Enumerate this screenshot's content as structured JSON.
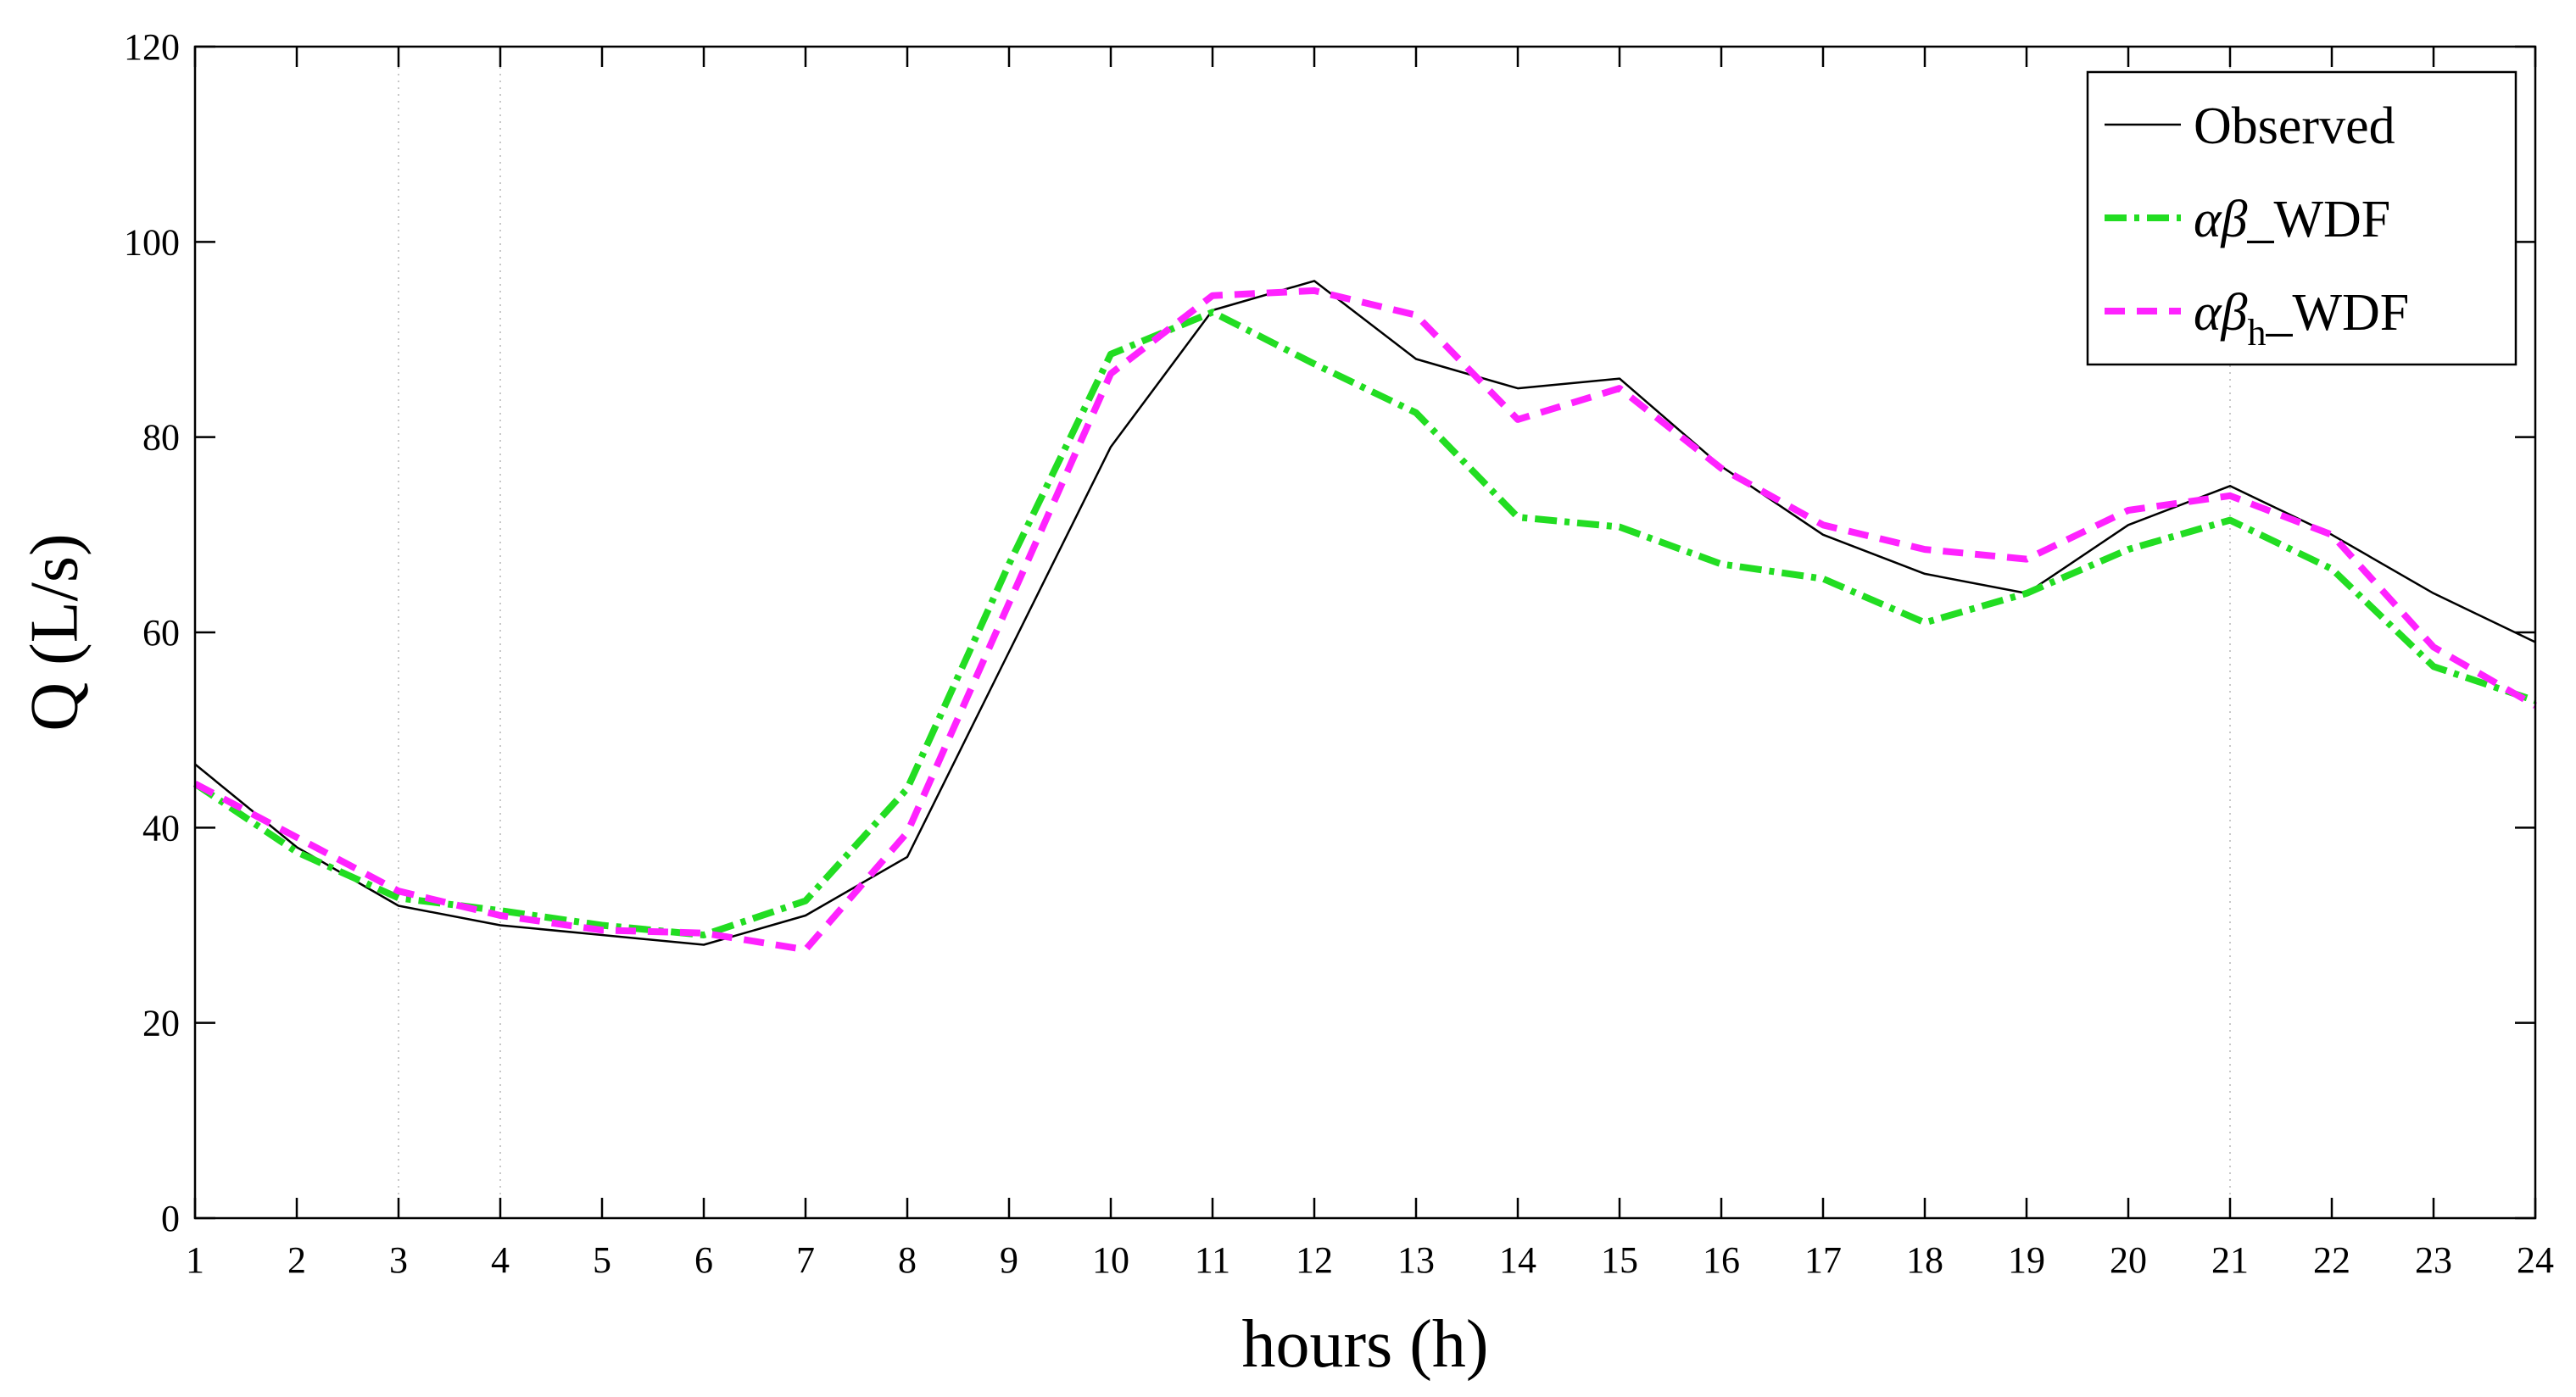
{
  "chart_data": {
    "type": "line",
    "xlabel": "hours (h)",
    "ylabel": "Q (L/s)",
    "xlim": [
      1,
      24
    ],
    "ylim": [
      0,
      120
    ],
    "x_ticks": [
      1,
      2,
      3,
      4,
      5,
      6,
      7,
      8,
      9,
      10,
      11,
      12,
      13,
      14,
      15,
      16,
      17,
      18,
      19,
      20,
      21,
      22,
      23,
      24
    ],
    "y_ticks": [
      0,
      20,
      40,
      60,
      80,
      100,
      120
    ],
    "vertical_gridlines_at": [
      3,
      4,
      21
    ],
    "legend_position": "top-right",
    "x": [
      1,
      2,
      3,
      4,
      5,
      6,
      7,
      8,
      9,
      10,
      11,
      12,
      13,
      14,
      15,
      16,
      17,
      18,
      19,
      20,
      21,
      22,
      23,
      24
    ],
    "series": [
      {
        "name": "Observed",
        "legend": {
          "greek": "",
          "sub": "",
          "suffix": "Observed"
        },
        "color": "#000000",
        "style": "solid",
        "values": [
          46.5,
          38,
          32,
          30,
          29,
          28,
          31,
          37,
          58,
          79,
          93,
          96,
          88,
          85,
          86,
          77,
          70,
          66,
          64,
          71,
          75,
          70,
          64,
          59
        ]
      },
      {
        "name": "αβ_WDF",
        "legend": {
          "greek": "αβ",
          "sub": "",
          "suffix": "_WDF"
        },
        "color": "#22dd22",
        "style": "dashdot",
        "values": [
          44.5,
          37.5,
          32.8,
          31.5,
          30,
          29,
          32.5,
          44,
          67,
          88.5,
          92.8,
          87.5,
          82.5,
          71.8,
          70.8,
          67,
          65.5,
          61,
          64,
          68.5,
          71.5,
          66.5,
          56.5,
          53
        ]
      },
      {
        "name": "αβh_WDF",
        "legend": {
          "greek": "αβ",
          "sub": "h",
          "suffix": "_WDF"
        },
        "color": "#ff22ff",
        "style": "dashed",
        "values": [
          44.5,
          39,
          33.5,
          31,
          29.5,
          29.2,
          27.5,
          39.5,
          63,
          86.5,
          94.5,
          95,
          92.5,
          81.8,
          85,
          76.8,
          71,
          68.5,
          67.5,
          72.5,
          74,
          70,
          58.5,
          52.5
        ]
      }
    ]
  }
}
